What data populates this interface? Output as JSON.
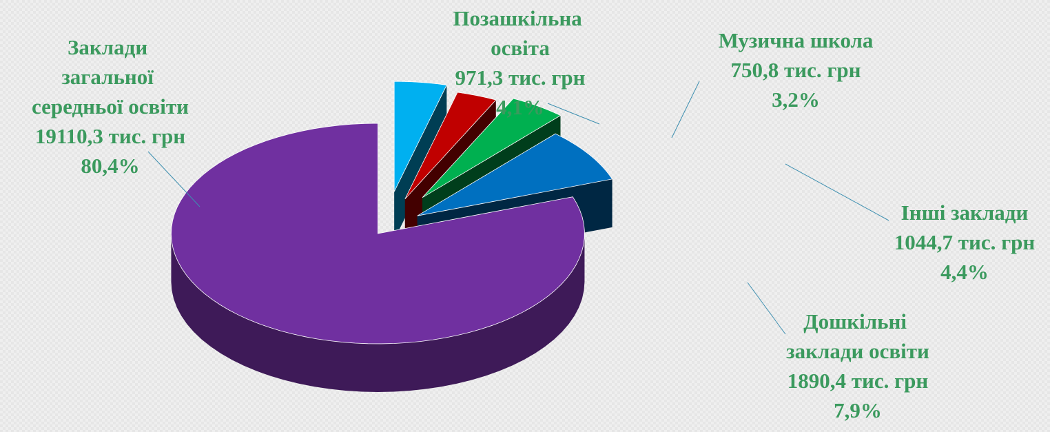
{
  "chart_data": {
    "type": "pie3d",
    "categories": [
      "Позашкільна освіта",
      "Музична школа",
      "Інші заклади",
      "Дошкільні заклади освіти",
      "Заклади загальної середньої освіти"
    ],
    "values": [
      971.3,
      750.8,
      1044.7,
      1890.4,
      19110.3
    ],
    "value_labels": [
      "971,3 тис. грн",
      "750,8 тис. грн",
      "1044,7 тис. грн",
      "1890,4 тис. грн",
      "19110,3 тис. грн"
    ],
    "percents": [
      4.1,
      3.2,
      4.4,
      7.9,
      80.4
    ],
    "percent_labels": [
      "4,1%",
      "3,2%",
      "4,4%",
      "7,9%",
      "80,4%"
    ],
    "colors": [
      "#00b0f0",
      "#c00000",
      "#00b050",
      "#0070c0",
      "#7030a0"
    ]
  }
}
